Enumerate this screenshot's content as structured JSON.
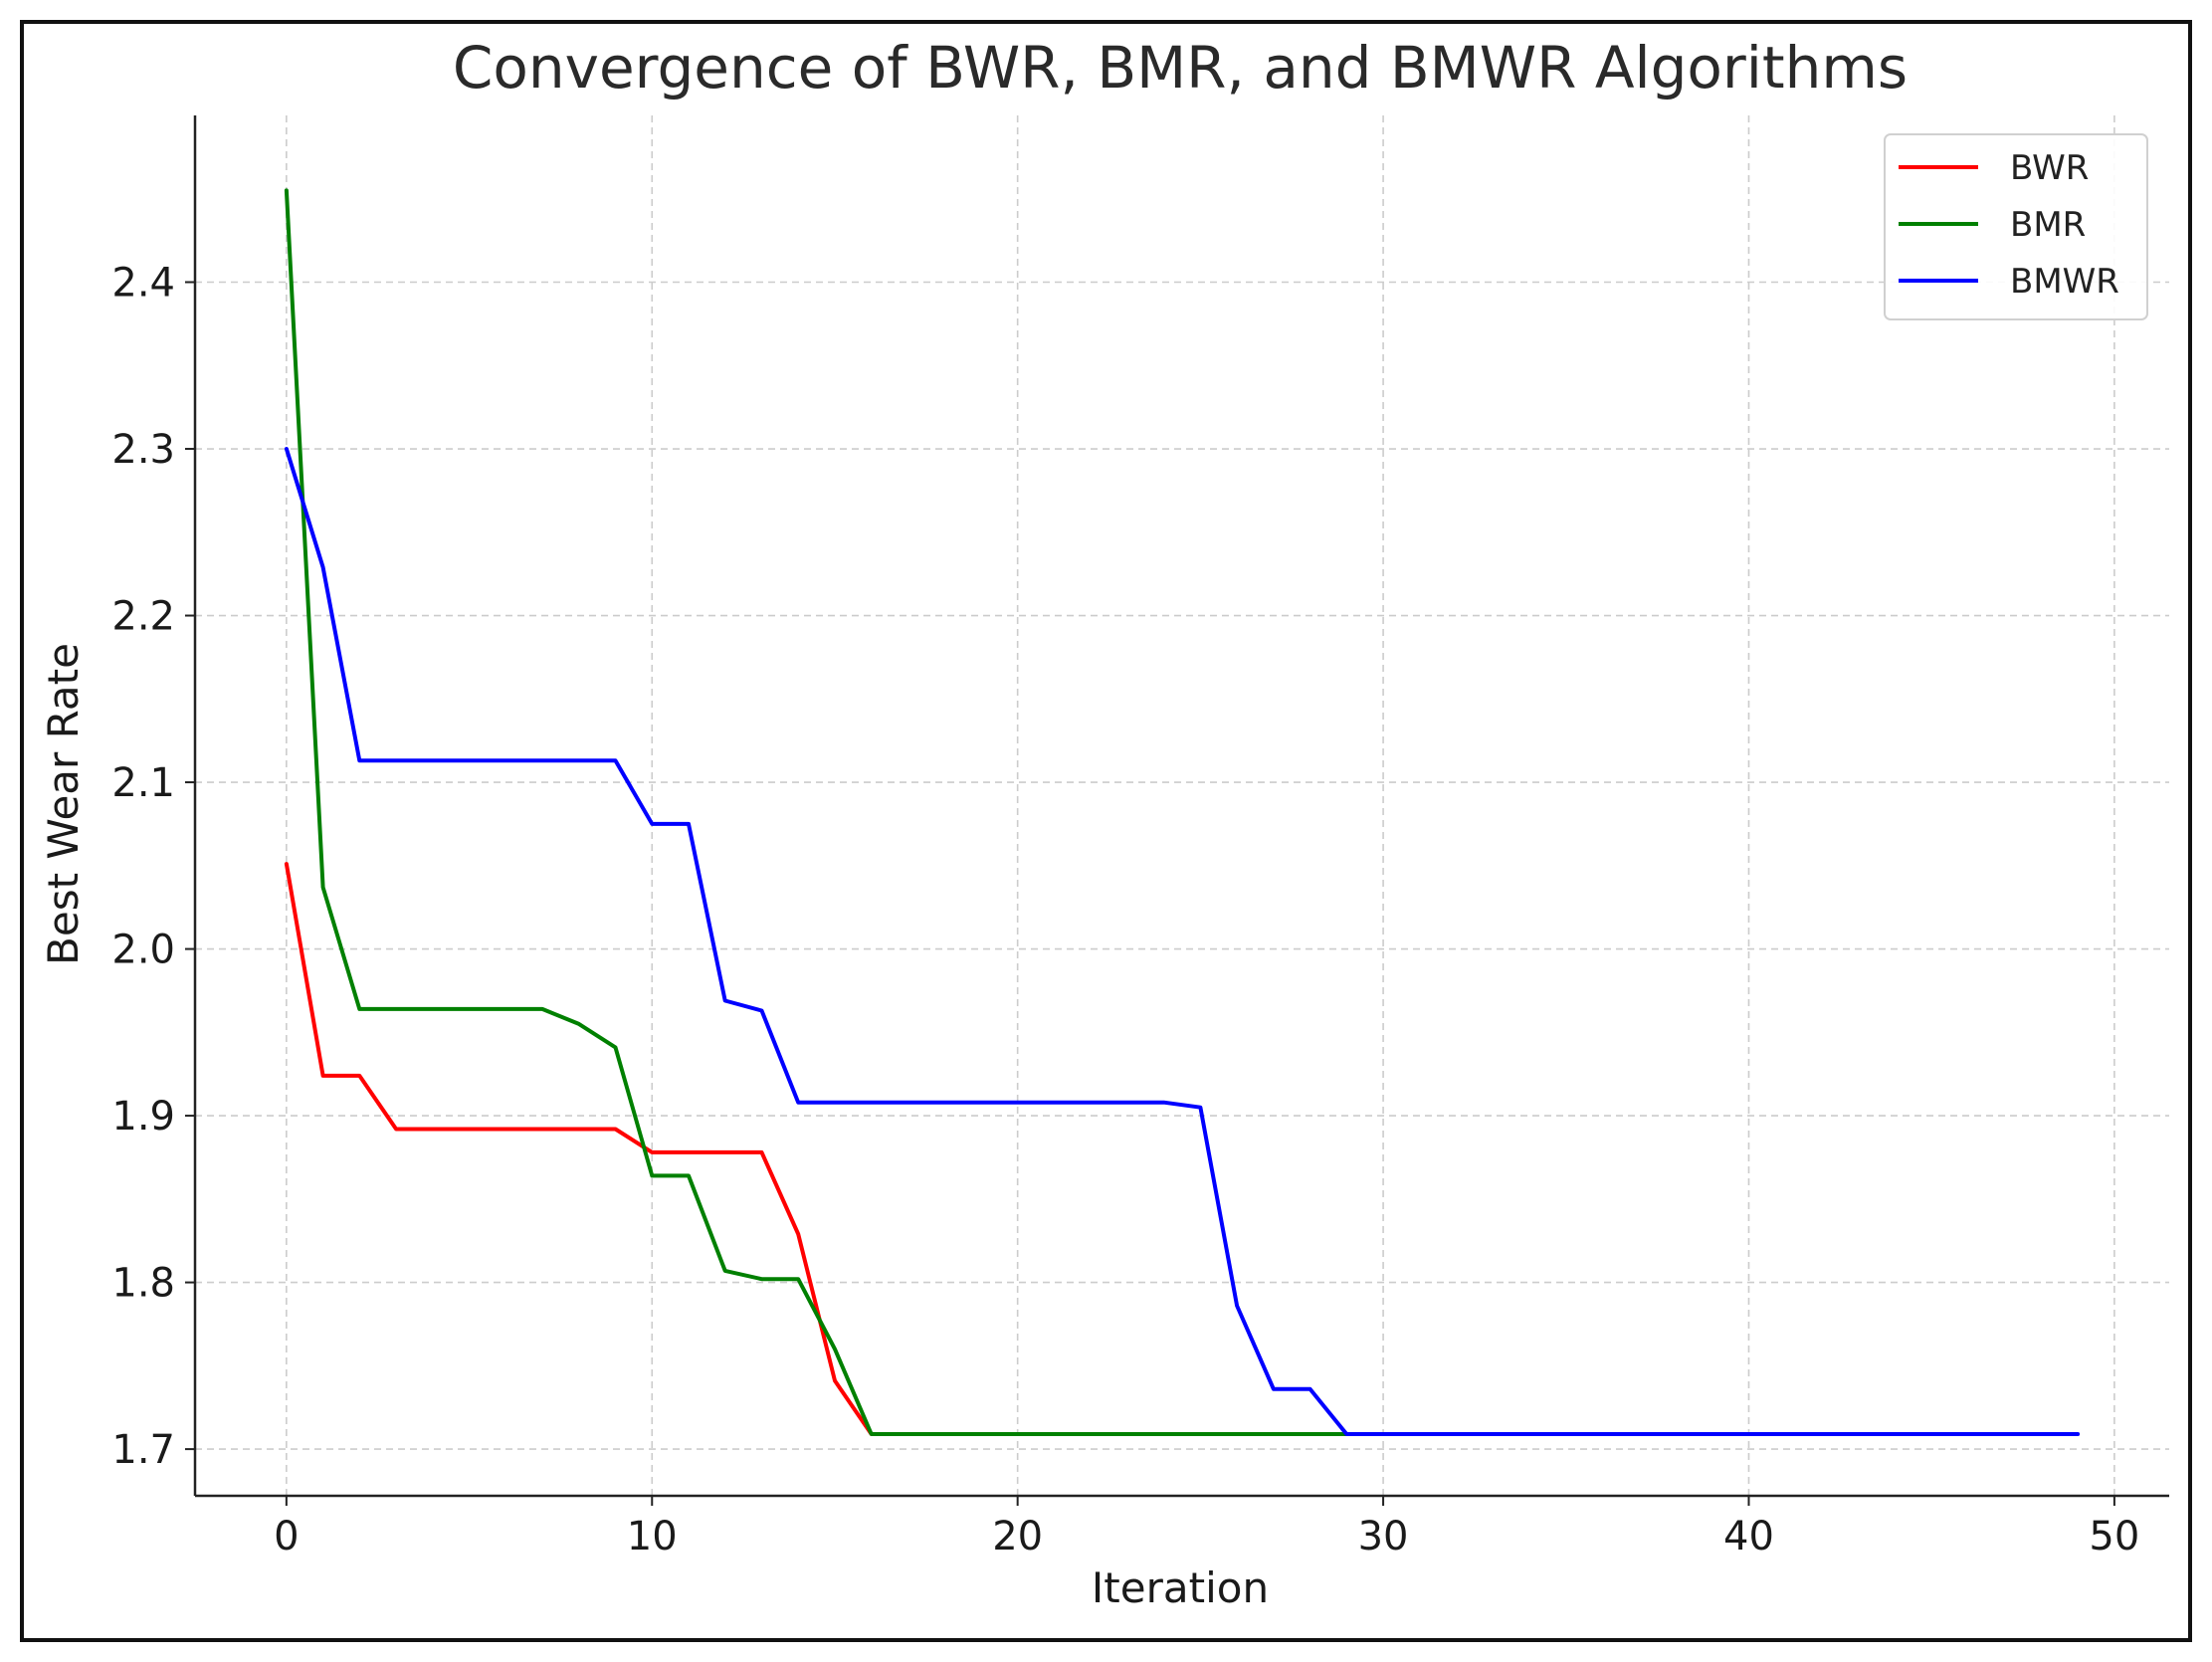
{
  "chart_data": {
    "type": "line",
    "title": "Convergence of BWR, BMR, and BMWR Algorithms",
    "xlabel": "Iteration",
    "ylabel": "Best Wear Rate",
    "xlim": [
      -2.5,
      51.5
    ],
    "ylim": [
      1.672,
      2.5
    ],
    "xticks": [
      0,
      10,
      20,
      30,
      40,
      50
    ],
    "yticks": [
      1.7,
      1.8,
      1.9,
      2.0,
      2.1,
      2.2,
      2.3,
      2.4
    ],
    "ytick_labels": [
      "1.7",
      "1.8",
      "1.9",
      "2.0",
      "2.1",
      "2.2",
      "2.3",
      "2.4"
    ],
    "grid": true,
    "legend_position": "top-right",
    "series": [
      {
        "name": "BWR",
        "color": "#ff0000",
        "x": [
          0,
          1,
          2,
          3,
          4,
          5,
          6,
          7,
          8,
          9,
          10,
          11,
          12,
          13,
          14,
          15,
          16,
          17,
          18,
          19,
          20,
          21,
          22,
          23,
          24,
          25,
          26,
          27,
          28,
          29
        ],
        "values": [
          2.051,
          1.924,
          1.924,
          1.892,
          1.892,
          1.892,
          1.892,
          1.892,
          1.892,
          1.892,
          1.878,
          1.878,
          1.878,
          1.878,
          1.829,
          1.741,
          1.709,
          1.709,
          1.709,
          1.709,
          1.709,
          1.709,
          1.709,
          1.709,
          1.709,
          1.709,
          1.709,
          1.709,
          1.709,
          1.709
        ]
      },
      {
        "name": "BMR",
        "color": "#008000",
        "x": [
          0,
          1,
          2,
          3,
          4,
          5,
          6,
          7,
          8,
          9,
          10,
          11,
          12,
          13,
          14,
          15,
          16,
          17,
          18,
          19,
          20,
          21,
          22,
          23,
          24,
          25,
          26,
          27,
          28,
          29
        ],
        "values": [
          2.455,
          2.037,
          1.964,
          1.964,
          1.964,
          1.964,
          1.964,
          1.964,
          1.955,
          1.941,
          1.864,
          1.864,
          1.807,
          1.802,
          1.802,
          1.76,
          1.709,
          1.709,
          1.709,
          1.709,
          1.709,
          1.709,
          1.709,
          1.709,
          1.709,
          1.709,
          1.709,
          1.709,
          1.709,
          1.709
        ]
      },
      {
        "name": "BMWR",
        "color": "#0000ff",
        "x": [
          0,
          1,
          2,
          3,
          4,
          5,
          6,
          7,
          8,
          9,
          10,
          11,
          12,
          13,
          14,
          15,
          16,
          17,
          18,
          19,
          20,
          21,
          22,
          23,
          24,
          25,
          26,
          27,
          28,
          29,
          30,
          31,
          32,
          33,
          34,
          35,
          36,
          37,
          38,
          39,
          40,
          41,
          42,
          43,
          44,
          45,
          46,
          47,
          48,
          49
        ],
        "values": [
          2.3,
          2.229,
          2.113,
          2.113,
          2.113,
          2.113,
          2.113,
          2.113,
          2.113,
          2.113,
          2.075,
          2.075,
          1.969,
          1.963,
          1.908,
          1.908,
          1.908,
          1.908,
          1.908,
          1.908,
          1.908,
          1.908,
          1.908,
          1.908,
          1.908,
          1.905,
          1.786,
          1.736,
          1.736,
          1.709,
          1.709,
          1.709,
          1.709,
          1.709,
          1.709,
          1.709,
          1.709,
          1.709,
          1.709,
          1.709,
          1.709,
          1.709,
          1.709,
          1.709,
          1.709,
          1.709,
          1.709,
          1.709,
          1.709,
          1.709
        ]
      }
    ]
  }
}
